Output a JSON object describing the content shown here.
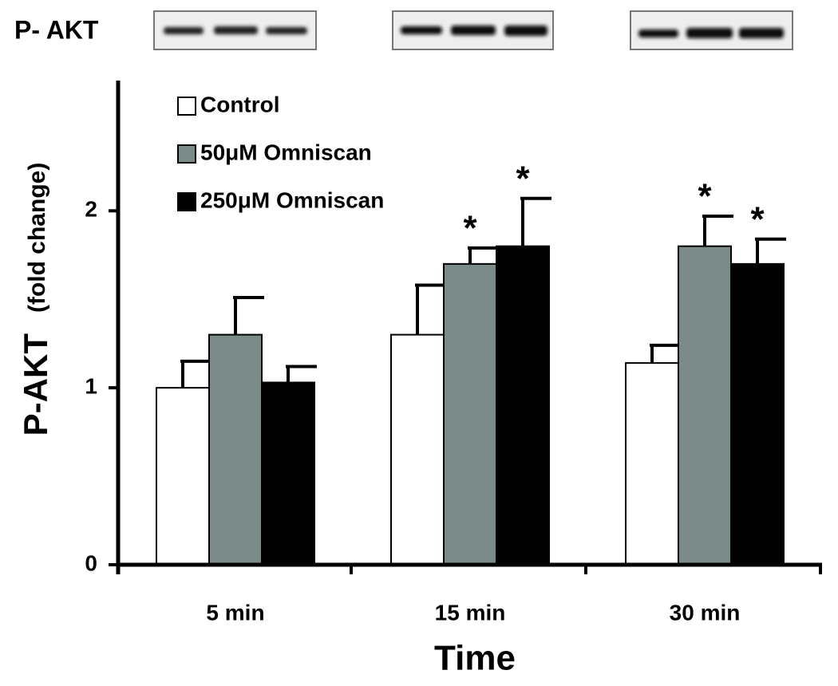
{
  "chart_data": {
    "type": "bar",
    "blot_label": "P- AKT",
    "ylabel": "P-AKT",
    "ylabel_unit": "(fold change)",
    "xlabel": "Time",
    "categories": [
      "5 min",
      "15 min",
      "30 min"
    ],
    "series": [
      {
        "name": "Control",
        "color": "#ffffff",
        "values": [
          1.0,
          1.3,
          1.14
        ],
        "errors": [
          0.15,
          0.28,
          0.1
        ],
        "significance": [
          null,
          null,
          null
        ]
      },
      {
        "name": "50μM Omniscan",
        "color": "#7b8b8a",
        "values": [
          1.3,
          1.7,
          1.8
        ],
        "errors": [
          0.21,
          0.09,
          0.17
        ],
        "significance": [
          null,
          "*",
          "*"
        ]
      },
      {
        "name": "250μM Omniscan",
        "color": "#000000",
        "values": [
          1.03,
          1.8,
          1.7
        ],
        "errors": [
          0.09,
          0.27,
          0.14
        ],
        "significance": [
          null,
          "*",
          "*"
        ]
      }
    ],
    "ylim": [
      0,
      2.7
    ],
    "yticks": [
      0,
      1,
      2
    ],
    "legend": "upper left"
  }
}
